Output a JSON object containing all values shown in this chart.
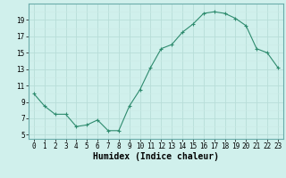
{
  "x": [
    0,
    1,
    2,
    3,
    4,
    5,
    6,
    7,
    8,
    9,
    10,
    11,
    12,
    13,
    14,
    15,
    16,
    17,
    18,
    19,
    20,
    21,
    22,
    23
  ],
  "y": [
    10.0,
    8.5,
    7.5,
    7.5,
    6.0,
    6.2,
    6.8,
    5.5,
    5.5,
    8.5,
    10.5,
    13.2,
    15.5,
    16.0,
    17.5,
    18.5,
    19.8,
    20.0,
    19.8,
    19.2,
    18.3,
    15.5,
    15.0,
    13.2
  ],
  "line_color": "#2e8b6e",
  "marker": "+",
  "bg_color": "#d0f0ec",
  "xlabel": "Humidex (Indice chaleur)",
  "xlim": [
    -0.5,
    23.5
  ],
  "ylim": [
    4.5,
    21.0
  ],
  "yticks": [
    5,
    7,
    9,
    11,
    13,
    15,
    17,
    19
  ],
  "xticks": [
    0,
    1,
    2,
    3,
    4,
    5,
    6,
    7,
    8,
    9,
    10,
    11,
    12,
    13,
    14,
    15,
    16,
    17,
    18,
    19,
    20,
    21,
    22,
    23
  ],
  "tick_fontsize": 5.5,
  "xlabel_fontsize": 7.0,
  "line_width": 0.8,
  "marker_size": 3,
  "major_grid_color": "#b8ddd8",
  "minor_grid_color": "#cceae5"
}
